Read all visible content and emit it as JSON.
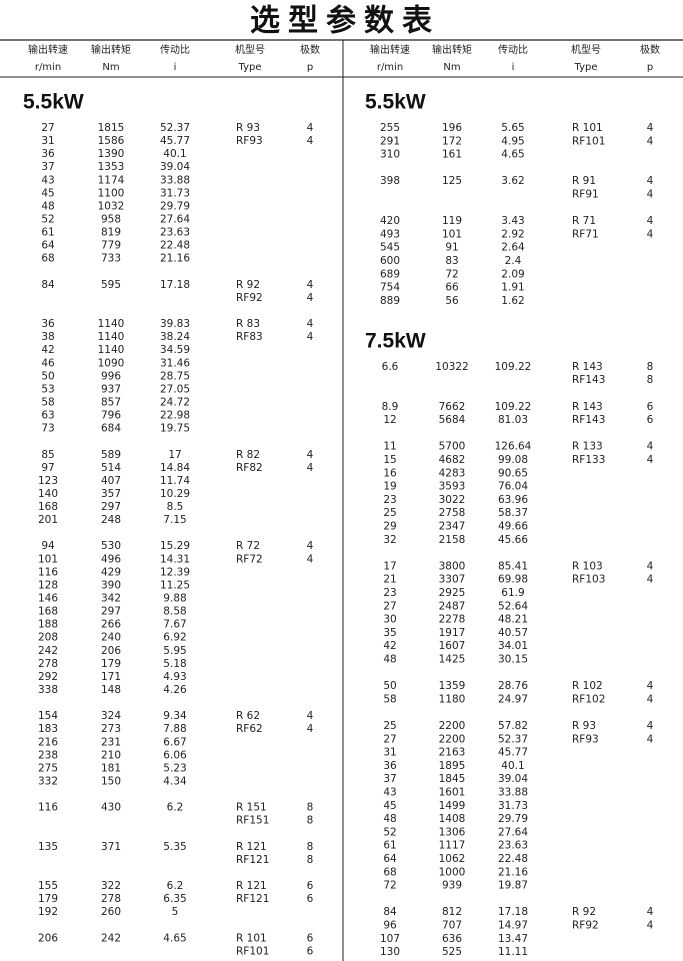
{
  "title": "选型参数表",
  "header": {
    "columns": [
      {
        "name": "输出转速",
        "unit": "r/min"
      },
      {
        "name": "输出转矩",
        "unit": "Nm"
      },
      {
        "name": "传动比",
        "unit": "i"
      },
      {
        "name": "机型号",
        "unit": "Type"
      },
      {
        "name": "极数",
        "unit": "p"
      }
    ]
  },
  "panels": [
    {
      "sections": [
        {
          "title": "5.5kW",
          "groups": [
            {
              "rows": [
                {
                  "speed": 27,
                  "torque": 1815,
                  "ratio": 52.37,
                  "type": "R 93",
                  "poles": 4
                },
                {
                  "speed": 31,
                  "torque": 1586,
                  "ratio": 45.77,
                  "type": "RF93",
                  "poles": 4
                },
                {
                  "speed": 36,
                  "torque": 1390,
                  "ratio": 40.1
                },
                {
                  "speed": 37,
                  "torque": 1353,
                  "ratio": 39.04
                },
                {
                  "speed": 43,
                  "torque": 1174,
                  "ratio": 33.88
                },
                {
                  "speed": 45,
                  "torque": 1100,
                  "ratio": 31.73
                },
                {
                  "speed": 48,
                  "torque": 1032,
                  "ratio": 29.79
                },
                {
                  "speed": 52,
                  "torque": 958,
                  "ratio": 27.64
                },
                {
                  "speed": 61,
                  "torque": 819,
                  "ratio": 23.63
                },
                {
                  "speed": 64,
                  "torque": 779,
                  "ratio": 22.48
                },
                {
                  "speed": 68,
                  "torque": 733,
                  "ratio": 21.16
                }
              ]
            },
            {
              "rows": [
                {
                  "speed": 84,
                  "torque": 595,
                  "ratio": 17.18,
                  "type": "R 92",
                  "poles": 4
                },
                {
                  "type": "RF92",
                  "poles": 4
                }
              ]
            },
            {
              "rows": [
                {
                  "speed": 36,
                  "torque": 1140,
                  "ratio": 39.83,
                  "type": "R 83",
                  "poles": 4
                },
                {
                  "speed": 38,
                  "torque": 1140,
                  "ratio": 38.24,
                  "type": "RF83",
                  "poles": 4
                },
                {
                  "speed": 42,
                  "torque": 1140,
                  "ratio": 34.59
                },
                {
                  "speed": 46,
                  "torque": 1090,
                  "ratio": 31.46
                },
                {
                  "speed": 50,
                  "torque": 996,
                  "ratio": 28.75
                },
                {
                  "speed": 53,
                  "torque": 937,
                  "ratio": 27.05
                },
                {
                  "speed": 58,
                  "torque": 857,
                  "ratio": 24.72
                },
                {
                  "speed": 63,
                  "torque": 796,
                  "ratio": 22.98
                },
                {
                  "speed": 73,
                  "torque": 684,
                  "ratio": 19.75
                }
              ]
            },
            {
              "rows": [
                {
                  "speed": 85,
                  "torque": 589,
                  "ratio": 17,
                  "type": "R 82",
                  "poles": 4
                },
                {
                  "speed": 97,
                  "torque": 514,
                  "ratio": 14.84,
                  "type": "RF82",
                  "poles": 4
                },
                {
                  "speed": 123,
                  "torque": 407,
                  "ratio": 11.74
                },
                {
                  "speed": 140,
                  "torque": 357,
                  "ratio": 10.29
                },
                {
                  "speed": 168,
                  "torque": 297,
                  "ratio": 8.5
                },
                {
                  "speed": 201,
                  "torque": 248,
                  "ratio": 7.15
                }
              ]
            },
            {
              "rows": [
                {
                  "speed": 94,
                  "torque": 530,
                  "ratio": 15.29,
                  "type": "R 72",
                  "poles": 4
                },
                {
                  "speed": 101,
                  "torque": 496,
                  "ratio": 14.31,
                  "type": "RF72",
                  "poles": 4
                },
                {
                  "speed": 116,
                  "torque": 429,
                  "ratio": 12.39
                },
                {
                  "speed": 128,
                  "torque": 390,
                  "ratio": 11.25
                },
                {
                  "speed": 146,
                  "torque": 342,
                  "ratio": 9.88
                },
                {
                  "speed": 168,
                  "torque": 297,
                  "ratio": 8.58
                },
                {
                  "speed": 188,
                  "torque": 266,
                  "ratio": 7.67
                },
                {
                  "speed": 208,
                  "torque": 240,
                  "ratio": 6.92
                },
                {
                  "speed": 242,
                  "torque": 206,
                  "ratio": 5.95
                },
                {
                  "speed": 278,
                  "torque": 179,
                  "ratio": 5.18
                },
                {
                  "speed": 292,
                  "torque": 171,
                  "ratio": 4.93
                },
                {
                  "speed": 338,
                  "torque": 148,
                  "ratio": 4.26
                }
              ]
            },
            {
              "rows": [
                {
                  "speed": 154,
                  "torque": 324,
                  "ratio": 9.34,
                  "type": "R 62",
                  "poles": 4
                },
                {
                  "speed": 183,
                  "torque": 273,
                  "ratio": 7.88,
                  "type": "RF62",
                  "poles": 4
                },
                {
                  "speed": 216,
                  "torque": 231,
                  "ratio": 6.67
                },
                {
                  "speed": 238,
                  "torque": 210,
                  "ratio": 6.06
                },
                {
                  "speed": 275,
                  "torque": 181,
                  "ratio": 5.23
                },
                {
                  "speed": 332,
                  "torque": 150,
                  "ratio": 4.34
                }
              ]
            },
            {
              "rows": [
                {
                  "speed": 116,
                  "torque": 430,
                  "ratio": 6.2,
                  "type": "R 151",
                  "poles": 8
                },
                {
                  "type": "RF151",
                  "poles": 8
                }
              ]
            },
            {
              "rows": [
                {
                  "speed": 135,
                  "torque": 371,
                  "ratio": 5.35,
                  "type": "R 121",
                  "poles": 8
                },
                {
                  "type": "RF121",
                  "poles": 8
                }
              ]
            },
            {
              "rows": [
                {
                  "speed": 155,
                  "torque": 322,
                  "ratio": 6.2,
                  "type": "R 121",
                  "poles": 6
                },
                {
                  "speed": 179,
                  "torque": 278,
                  "ratio": 6.35,
                  "type": "RF121",
                  "poles": 6
                },
                {
                  "speed": 192,
                  "torque": 260,
                  "ratio": 5
                }
              ]
            },
            {
              "rows": [
                {
                  "speed": 206,
                  "torque": 242,
                  "ratio": 4.65,
                  "type": "R 101",
                  "poles": 6
                },
                {
                  "type": "RF101",
                  "poles": 6
                }
              ]
            }
          ]
        }
      ]
    },
    {
      "sections": [
        {
          "title": "5.5kW",
          "groups": [
            {
              "rows": [
                {
                  "speed": 255,
                  "torque": 196,
                  "ratio": 5.65,
                  "type": "R 101",
                  "poles": 4
                },
                {
                  "speed": 291,
                  "torque": 172,
                  "ratio": 4.95,
                  "type": "RF101",
                  "poles": 4
                },
                {
                  "speed": 310,
                  "torque": 161,
                  "ratio": 4.65
                }
              ]
            },
            {
              "rows": [
                {
                  "speed": 398,
                  "torque": 125,
                  "ratio": 3.62,
                  "type": "R 91",
                  "poles": 4
                },
                {
                  "type": "RF91",
                  "poles": 4
                }
              ]
            },
            {
              "rows": [
                {
                  "speed": 420,
                  "torque": 119,
                  "ratio": 3.43,
                  "type": "R 71",
                  "poles": 4
                },
                {
                  "speed": 493,
                  "torque": 101,
                  "ratio": 2.92,
                  "type": "RF71",
                  "poles": 4
                },
                {
                  "speed": 545,
                  "torque": 91,
                  "ratio": 2.64
                },
                {
                  "speed": 600,
                  "torque": 83,
                  "ratio": 2.4
                },
                {
                  "speed": 689,
                  "torque": 72,
                  "ratio": 2.09
                },
                {
                  "speed": 754,
                  "torque": 66,
                  "ratio": 1.91
                },
                {
                  "speed": 889,
                  "torque": 56,
                  "ratio": 1.62
                }
              ]
            }
          ]
        },
        {
          "title": "7.5kW",
          "groups": [
            {
              "rows": [
                {
                  "speed": 6.6,
                  "torque": 10322,
                  "ratio": 109.22,
                  "type": "R 143",
                  "poles": 8
                },
                {
                  "type": "RF143",
                  "poles": 8
                }
              ]
            },
            {
              "rows": [
                {
                  "speed": 8.9,
                  "torque": 7662,
                  "ratio": 109.22,
                  "type": "R 143",
                  "poles": 6
                },
                {
                  "speed": 12,
                  "torque": 5684,
                  "ratio": 81.03,
                  "type": "RF143",
                  "poles": 6
                }
              ]
            },
            {
              "rows": [
                {
                  "speed": 11,
                  "torque": 5700,
                  "ratio": 126.64,
                  "type": "R 133",
                  "poles": 4
                },
                {
                  "speed": 15,
                  "torque": 4682,
                  "ratio": 99.08,
                  "type": "RF133",
                  "poles": 4
                },
                {
                  "speed": 16,
                  "torque": 4283,
                  "ratio": 90.65
                },
                {
                  "speed": 19,
                  "torque": 3593,
                  "ratio": 76.04
                },
                {
                  "speed": 23,
                  "torque": 3022,
                  "ratio": 63.96
                },
                {
                  "speed": 25,
                  "torque": 2758,
                  "ratio": 58.37
                },
                {
                  "speed": 29,
                  "torque": 2347,
                  "ratio": 49.66
                },
                {
                  "speed": 32,
                  "torque": 2158,
                  "ratio": 45.66
                }
              ]
            },
            {
              "rows": [
                {
                  "speed": 17,
                  "torque": 3800,
                  "ratio": 85.41,
                  "type": "R 103",
                  "poles": 4
                },
                {
                  "speed": 21,
                  "torque": 3307,
                  "ratio": 69.98,
                  "type": "RF103",
                  "poles": 4
                },
                {
                  "speed": 23,
                  "torque": 2925,
                  "ratio": 61.9
                },
                {
                  "speed": 27,
                  "torque": 2487,
                  "ratio": 52.64
                },
                {
                  "speed": 30,
                  "torque": 2278,
                  "ratio": 48.21
                },
                {
                  "speed": 35,
                  "torque": 1917,
                  "ratio": 40.57
                },
                {
                  "speed": 42,
                  "torque": 1607,
                  "ratio": 34.01
                },
                {
                  "speed": 48,
                  "torque": 1425,
                  "ratio": 30.15
                }
              ]
            },
            {
              "rows": [
                {
                  "speed": 50,
                  "torque": 1359,
                  "ratio": 28.76,
                  "type": "R 102",
                  "poles": 4
                },
                {
                  "speed": 58,
                  "torque": 1180,
                  "ratio": 24.97,
                  "type": "RF102",
                  "poles": 4
                }
              ]
            },
            {
              "rows": [
                {
                  "speed": 25,
                  "torque": 2200,
                  "ratio": 57.82,
                  "type": "R 93",
                  "poles": 4
                },
                {
                  "speed": 27,
                  "torque": 2200,
                  "ratio": 52.37,
                  "type": "RF93",
                  "poles": 4
                },
                {
                  "speed": 31,
                  "torque": 2163,
                  "ratio": 45.77
                },
                {
                  "speed": 36,
                  "torque": 1895,
                  "ratio": 40.1
                },
                {
                  "speed": 37,
                  "torque": 1845,
                  "ratio": 39.04
                },
                {
                  "speed": 43,
                  "torque": 1601,
                  "ratio": 33.88
                },
                {
                  "speed": 45,
                  "torque": 1499,
                  "ratio": 31.73
                },
                {
                  "speed": 48,
                  "torque": 1408,
                  "ratio": 29.79
                },
                {
                  "speed": 52,
                  "torque": 1306,
                  "ratio": 27.64
                },
                {
                  "speed": 61,
                  "torque": 1117,
                  "ratio": 23.63
                },
                {
                  "speed": 64,
                  "torque": 1062,
                  "ratio": 22.48
                },
                {
                  "speed": 68,
                  "torque": 1000,
                  "ratio": 21.16
                },
                {
                  "speed": 72,
                  "torque": 939,
                  "ratio": 19.87
                }
              ]
            },
            {
              "rows": [
                {
                  "speed": 84,
                  "torque": 812,
                  "ratio": 17.18,
                  "type": "R 92",
                  "poles": 4
                },
                {
                  "speed": 96,
                  "torque": 707,
                  "ratio": 14.97,
                  "type": "RF92",
                  "poles": 4
                },
                {
                  "speed": 107,
                  "torque": 636,
                  "ratio": 13.47
                },
                {
                  "speed": 130,
                  "torque": 525,
                  "ratio": 11.11
                }
              ]
            }
          ]
        }
      ]
    }
  ]
}
